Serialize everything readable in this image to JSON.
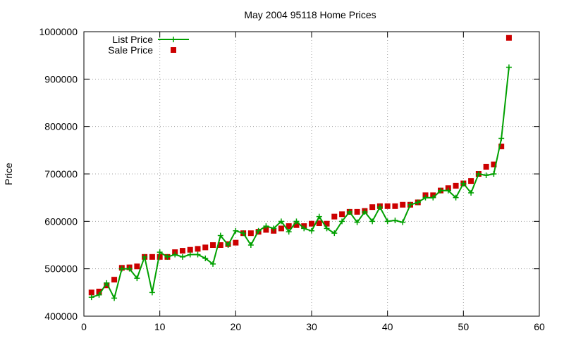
{
  "chart_data": {
    "type": "line",
    "title": "May 2004 95118 Home Prices",
    "xlabel": "",
    "ylabel": "Price",
    "xlim": [
      0,
      60
    ],
    "ylim": [
      400000,
      1000000
    ],
    "xticks": [
      0,
      10,
      20,
      30,
      40,
      50,
      60
    ],
    "yticks": [
      400000,
      500000,
      600000,
      700000,
      800000,
      900000,
      1000000
    ],
    "grid": true,
    "legend_position": "top-left",
    "x": [
      1,
      2,
      3,
      4,
      5,
      6,
      7,
      8,
      9,
      10,
      11,
      12,
      13,
      14,
      15,
      16,
      17,
      18,
      19,
      20,
      21,
      22,
      23,
      24,
      25,
      26,
      27,
      28,
      29,
      30,
      31,
      32,
      33,
      34,
      35,
      36,
      37,
      38,
      39,
      40,
      41,
      42,
      43,
      44,
      45,
      46,
      47,
      48,
      49,
      50,
      51,
      52,
      53,
      54,
      55,
      56
    ],
    "series": [
      {
        "name": "List Price",
        "style": "line+plus",
        "color": "#00a000",
        "values": [
          440000,
          445000,
          470000,
          438000,
          500000,
          500000,
          480000,
          525000,
          450000,
          535000,
          525000,
          530000,
          525000,
          530000,
          530000,
          522000,
          510000,
          570000,
          550000,
          580000,
          575000,
          550000,
          580000,
          590000,
          585000,
          600000,
          578000,
          600000,
          585000,
          580000,
          610000,
          585000,
          575000,
          600000,
          620000,
          598000,
          620000,
          600000,
          630000,
          600000,
          602000,
          598000,
          635000,
          640000,
          650000,
          650000,
          665000,
          665000,
          650000,
          680000,
          660000,
          700000,
          697000,
          700000,
          775000,
          925000
        ]
      },
      {
        "name": "Sale Price",
        "style": "square",
        "color": "#cc0000",
        "values": [
          450000,
          452000,
          465000,
          477000,
          502000,
          503000,
          505000,
          525000,
          525000,
          525000,
          525000,
          535000,
          538000,
          540000,
          542000,
          545000,
          550000,
          550000,
          552000,
          555000,
          575000,
          575000,
          578000,
          582000,
          580000,
          585000,
          590000,
          592000,
          590000,
          595000,
          596000,
          595000,
          610000,
          615000,
          620000,
          620000,
          622000,
          630000,
          632000,
          632000,
          632000,
          635000,
          635000,
          640000,
          655000,
          655000,
          665000,
          670000,
          675000,
          680000,
          685000,
          700000,
          715000,
          720000,
          758000,
          987000
        ]
      }
    ]
  }
}
